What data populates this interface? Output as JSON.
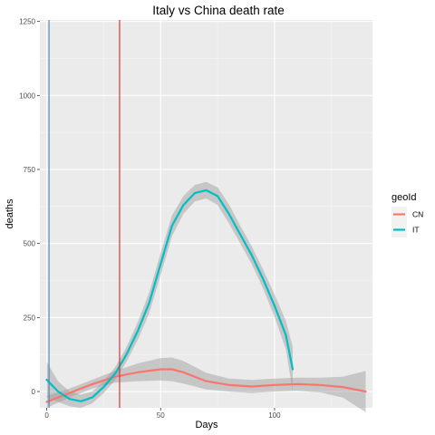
{
  "chart_data": {
    "type": "line",
    "title": "Italy vs China death rate",
    "xlabel": "Days",
    "ylabel": "deaths",
    "xlim": [
      -3,
      143
    ],
    "ylim": [
      -55,
      1255
    ],
    "x_ticks": [
      0,
      50,
      100
    ],
    "y_ticks": [
      0,
      250,
      500,
      750,
      1000,
      1250
    ],
    "x_tick_labels": [
      "0",
      "50",
      "100"
    ],
    "y_tick_labels": [
      "0",
      "250",
      "500",
      "750",
      "1000",
      "1250"
    ],
    "legend": {
      "title": "geoId",
      "position": "right",
      "entries": [
        "CN",
        "IT"
      ]
    },
    "series": [
      {
        "name": "CN",
        "color": "#F8766D",
        "x": [
          0,
          10,
          20,
          30,
          40,
          50,
          55,
          60,
          70,
          80,
          90,
          100,
          110,
          120,
          130,
          140
        ],
        "y": [
          -35,
          -5,
          25,
          50,
          65,
          75,
          75,
          65,
          35,
          22,
          17,
          22,
          25,
          22,
          15,
          0
        ],
        "band_half_width": [
          20,
          15,
          15,
          20,
          30,
          38,
          40,
          38,
          28,
          22,
          22,
          22,
          22,
          25,
          35,
          70
        ]
      },
      {
        "name": "IT",
        "color": "#00BFC4",
        "x": [
          0,
          5,
          10,
          15,
          20,
          25,
          30,
          35,
          40,
          45,
          50,
          55,
          60,
          65,
          70,
          75,
          80,
          85,
          90,
          95,
          100,
          105,
          108
        ],
        "y": [
          40,
          0,
          -25,
          -33,
          -20,
          15,
          60,
          125,
          205,
          300,
          430,
          560,
          630,
          670,
          680,
          660,
          600,
          530,
          460,
          380,
          290,
          190,
          75
        ],
        "band_half_width": [
          60,
          35,
          25,
          22,
          20,
          20,
          22,
          25,
          30,
          35,
          38,
          35,
          30,
          28,
          28,
          30,
          32,
          30,
          30,
          32,
          38,
          48,
          75
        ]
      }
    ],
    "vertical_lines": [
      {
        "x": 1,
        "color": "#4A7FB5"
      },
      {
        "x": 32,
        "color": "#D62728"
      }
    ]
  }
}
